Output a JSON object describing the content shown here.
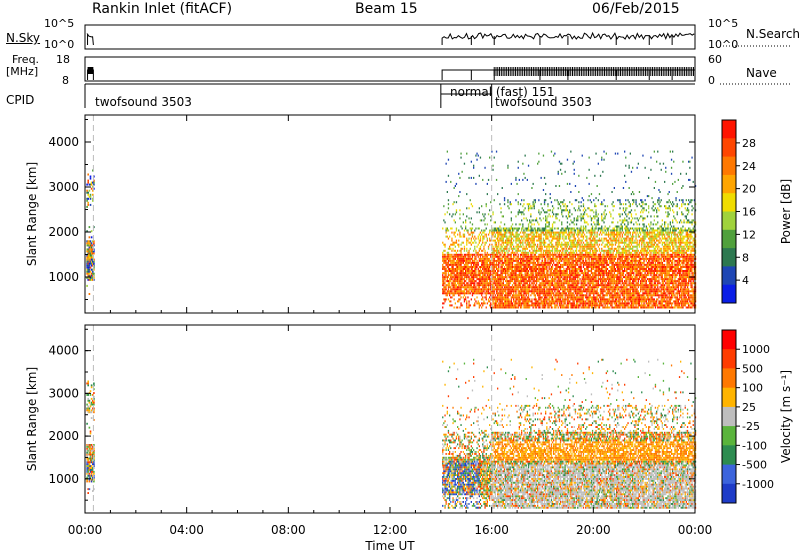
{
  "header": {
    "title": "Rankin Inlet (fitACF)",
    "beam": "Beam 15",
    "date": "06/Feb/2015"
  },
  "sky_panel": {
    "left_label": "N.Sky",
    "left_ticks": [
      "10^5",
      "10^0"
    ],
    "right_label": "N.Search",
    "right_ticks": [
      "10^5",
      "10^0"
    ],
    "right_legend_line": "dotted"
  },
  "freq_panel": {
    "left_label_1": "Freq.",
    "left_label_2": "[MHz]",
    "left_ticks": [
      "18",
      "8"
    ],
    "right_label": "Nave",
    "right_ticks": [
      "60",
      "0"
    ],
    "right_legend_line": "dotted"
  },
  "cpid_panel": {
    "label": "CPID",
    "segments": [
      {
        "start": 0.0,
        "end": 0.33,
        "label": "twofsound 3503"
      },
      {
        "start": 14.0,
        "end": 16.0,
        "label": "normal (fast) 151"
      },
      {
        "start": 16.0,
        "end": 24.0,
        "label": "twofsound 3503"
      }
    ]
  },
  "chart_data": [
    {
      "type": "heatmap",
      "title": "",
      "xlabel": "",
      "ylabel": "Slant Range [km]",
      "ylim": [
        200,
        4600
      ],
      "yticks": [
        "1000",
        "2000",
        "3000",
        "4000"
      ],
      "xlim": [
        0,
        24
      ],
      "colorbar_label": "Power [dB]",
      "colorbar_ticks": [
        "28",
        "24",
        "20",
        "16",
        "12",
        "8",
        "4"
      ],
      "colors": [
        "#0a1ee6",
        "#1e46b4",
        "#2d7850",
        "#50a03c",
        "#a0d23c",
        "#f0dc00",
        "#ffa500",
        "#ff7800",
        "#ff4600",
        "#ff1400"
      ],
      "dashed_time_lines": [
        0.33,
        16.0
      ],
      "data_hours_description": "echoes 00:00-00:20 and 14:00-24:00"
    },
    {
      "type": "heatmap",
      "title": "",
      "xlabel": "Time UT",
      "ylabel": "Slant Range [km]",
      "ylim": [
        200,
        4600
      ],
      "yticks": [
        "1000",
        "2000",
        "3000",
        "4000"
      ],
      "xlim": [
        0,
        24
      ],
      "xticks": [
        "00:00",
        "04:00",
        "08:00",
        "12:00",
        "16:00",
        "20:00",
        "00:00"
      ],
      "colorbar_label": "Velocity [m s⁻¹]",
      "colorbar_ticks": [
        "1000",
        "500",
        "100",
        "25",
        "-25",
        "-100",
        "-500",
        "-1000"
      ],
      "colors": [
        "#1e3cc8",
        "#3c64dc",
        "#2d8c50",
        "#5ab43c",
        "#bebebe",
        "#ffb400",
        "#ff7800",
        "#ff3c00",
        "#ff0000"
      ],
      "dashed_time_lines": [
        0.33,
        16.0
      ]
    }
  ]
}
